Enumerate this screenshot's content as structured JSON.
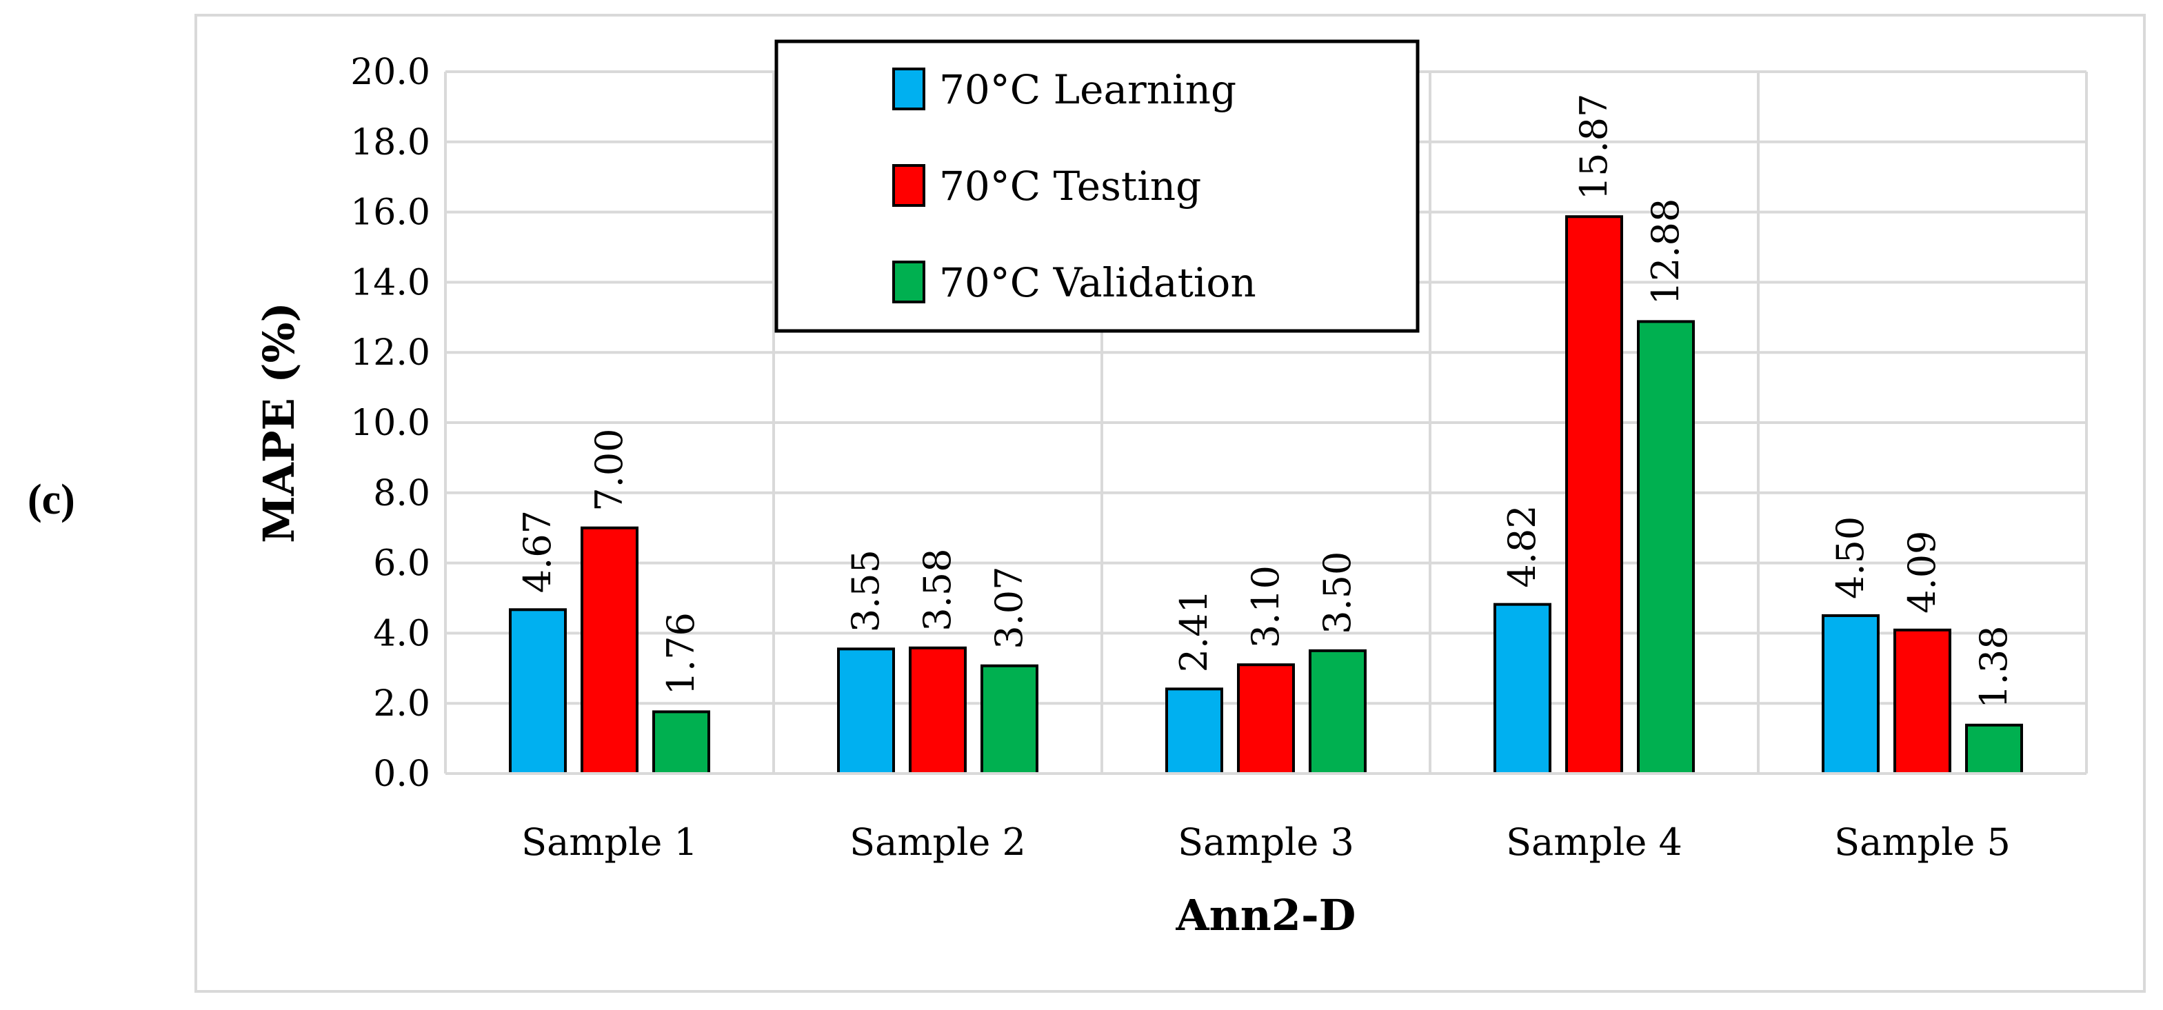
{
  "panel_label": "(c)",
  "colors": {
    "learning": "#00B0F0",
    "testing": "#FF0000",
    "validation": "#00B050",
    "grid": "#d9d9d9",
    "bar_outline": "#000000"
  },
  "chart_data": {
    "type": "bar",
    "title": "",
    "xlabel": "Ann2-D",
    "ylabel": "MAPE (%)",
    "ylim": [
      0,
      20
    ],
    "ytick_step": 2,
    "yticks": [
      "0.0",
      "2.0",
      "4.0",
      "6.0",
      "8.0",
      "10.0",
      "12.0",
      "14.0",
      "16.0",
      "18.0",
      "20.0"
    ],
    "grid": true,
    "legend_position": "top-center",
    "categories": [
      "Sample 1",
      "Sample 2",
      "Sample 3",
      "Sample 4",
      "Sample 5"
    ],
    "series": [
      {
        "name": "70°C  Learning",
        "color_key": "learning",
        "values": [
          4.67,
          3.55,
          2.41,
          4.82,
          4.5
        ],
        "labels": [
          "4.67",
          "3.55",
          "2.41",
          "4.82",
          "4.50"
        ]
      },
      {
        "name": "70°C  Testing",
        "color_key": "testing",
        "values": [
          7.0,
          3.58,
          3.1,
          15.87,
          4.09
        ],
        "labels": [
          "7.00",
          "3.58",
          "3.10",
          "15.87",
          "4.09"
        ]
      },
      {
        "name": "70°C  Validation",
        "color_key": "validation",
        "values": [
          1.76,
          3.07,
          3.5,
          12.88,
          1.38
        ],
        "labels": [
          "1.76",
          "3.07",
          "3.50",
          "12.88",
          "1.38"
        ]
      }
    ]
  }
}
